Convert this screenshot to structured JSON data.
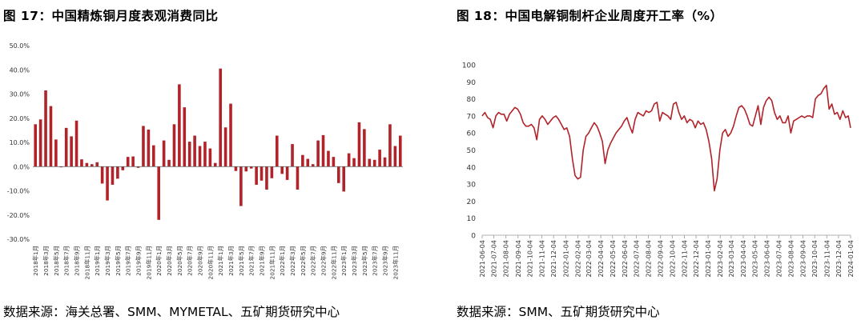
{
  "charts": [
    {
      "title": "图 17：中国精炼铜月度表观消费同比",
      "source": "数据来源：海关总署、SMM、MYMETAL、五矿期货研究中心"
    },
    {
      "title": "图 18：中国电解铜制杆企业周度开工率（%）",
      "source": "数据来源：SMM、五矿期货研究中心"
    }
  ],
  "chart_data": [
    {
      "type": "bar",
      "title": "中国精炼铜月度表观消费同比",
      "series_color": "#b22229",
      "ylim": [
        -30,
        50
      ],
      "yticks": [
        "-30.0%",
        "-20.0%",
        "-10.0%",
        "0.0%",
        "10.0%",
        "20.0%",
        "30.0%",
        "40.0%",
        "50.0%"
      ],
      "tick_labels": [
        "2018年1月",
        "2018年3月",
        "2018年5月",
        "2018年7月",
        "2018年9月",
        "2018年11月",
        "2019年1月",
        "2019年3月",
        "2019年5月",
        "2019年7月",
        "2019年9月",
        "2019年11月",
        "2020年1月",
        "2020年3月",
        "2020年5月",
        "2020年7月",
        "2020年9月",
        "2020年11月",
        "2021年1月",
        "2021年3月",
        "2021年5月",
        "2021年7月",
        "2021年9月",
        "2021年11月",
        "2022年1月",
        "2022年3月",
        "2022年5月",
        "2022年7月",
        "2022年9月",
        "2022年11月",
        "2023年1月",
        "2023年3月",
        "2023年5月",
        "2023年7月",
        "2023年9月",
        "2023年11月"
      ],
      "values": [
        17.5,
        19.5,
        31.5,
        25,
        11.2,
        -0.3,
        16,
        12.5,
        19,
        3,
        1.5,
        1,
        1.8,
        -7,
        -14,
        -7.5,
        -5,
        -1.5,
        4,
        4.2,
        -0.5,
        16.8,
        15.3,
        8.8,
        -22,
        10.8,
        2.8,
        17.5,
        34,
        24.5,
        10.3,
        12.8,
        8.5,
        10.3,
        7.5,
        1.5,
        40.5,
        16.2,
        26,
        -1.8,
        -16.3,
        -2,
        -0.8,
        -7.5,
        -5.8,
        -9.5,
        -4.8,
        12.8,
        -3,
        -5.5,
        9.3,
        -9.5,
        4.8,
        3.2,
        1,
        10.8,
        13,
        6.5,
        4,
        -6.8,
        -10.3,
        5.5,
        3.5,
        18.3,
        15.5,
        3.2,
        2.8,
        7,
        3.8,
        17.5,
        8.5,
        12.8
      ]
    },
    {
      "type": "line",
      "title": "中国电解铜制杆企业周度开工率（%）",
      "series_color": "#b22229",
      "ylim": [
        0,
        100
      ],
      "yticks": [
        "0",
        "10",
        "20",
        "30",
        "40",
        "50",
        "60",
        "70",
        "80",
        "90",
        "100"
      ],
      "x_range": [
        "2021-06-04",
        "2024-01-04"
      ],
      "x_ticks": [
        "2021-06-04",
        "2021-07-04",
        "2021-08-04",
        "2021-09-04",
        "2021-10-04",
        "2021-11-04",
        "2021-12-04",
        "2022-01-04",
        "2022-02-04",
        "2022-03-04",
        "2022-04-04",
        "2022-05-04",
        "2022-06-04",
        "2022-07-04",
        "2022-08-04",
        "2022-09-04",
        "2022-10-04",
        "2022-11-04",
        "2022-12-04",
        "2023-01-04",
        "2023-02-04",
        "2023-03-04",
        "2023-04-04",
        "2023-05-04",
        "2023-06-04",
        "2023-07-04",
        "2023-08-04",
        "2023-09-04",
        "2023-10-04",
        "2023-11-04",
        "2023-12-04",
        "2024-01-04"
      ],
      "points": [
        [
          "2021-06-04",
          70
        ],
        [
          "2021-06-11",
          72
        ],
        [
          "2021-06-18",
          69
        ],
        [
          "2021-06-25",
          68
        ],
        [
          "2021-07-02",
          63
        ],
        [
          "2021-07-09",
          70
        ],
        [
          "2021-07-16",
          72
        ],
        [
          "2021-07-23",
          71
        ],
        [
          "2021-07-30",
          71
        ],
        [
          "2021-08-06",
          67
        ],
        [
          "2021-08-13",
          71
        ],
        [
          "2021-08-20",
          73
        ],
        [
          "2021-08-27",
          75
        ],
        [
          "2021-09-03",
          74
        ],
        [
          "2021-09-10",
          71
        ],
        [
          "2021-09-17",
          66
        ],
        [
          "2021-09-24",
          64
        ],
        [
          "2021-10-01",
          64
        ],
        [
          "2021-10-08",
          65
        ],
        [
          "2021-10-15",
          63
        ],
        [
          "2021-10-22",
          56
        ],
        [
          "2021-10-29",
          68
        ],
        [
          "2021-11-05",
          70
        ],
        [
          "2021-11-12",
          68
        ],
        [
          "2021-11-19",
          65
        ],
        [
          "2021-11-26",
          67
        ],
        [
          "2021-12-03",
          69
        ],
        [
          "2021-12-10",
          70
        ],
        [
          "2021-12-17",
          68
        ],
        [
          "2021-12-24",
          65
        ],
        [
          "2021-12-31",
          62
        ],
        [
          "2022-01-07",
          63
        ],
        [
          "2022-01-14",
          58
        ],
        [
          "2022-01-21",
          45
        ],
        [
          "2022-01-28",
          35
        ],
        [
          "2022-02-04",
          33
        ],
        [
          "2022-02-11",
          34
        ],
        [
          "2022-02-18",
          50
        ],
        [
          "2022-02-25",
          58
        ],
        [
          "2022-03-04",
          60
        ],
        [
          "2022-03-11",
          63
        ],
        [
          "2022-03-18",
          66
        ],
        [
          "2022-03-25",
          64
        ],
        [
          "2022-04-01",
          60
        ],
        [
          "2022-04-08",
          55
        ],
        [
          "2022-04-15",
          42
        ],
        [
          "2022-04-22",
          50
        ],
        [
          "2022-04-29",
          54
        ],
        [
          "2022-05-06",
          57
        ],
        [
          "2022-05-13",
          60
        ],
        [
          "2022-05-20",
          62
        ],
        [
          "2022-05-27",
          64
        ],
        [
          "2022-06-03",
          67
        ],
        [
          "2022-06-10",
          69
        ],
        [
          "2022-06-17",
          64
        ],
        [
          "2022-06-24",
          60
        ],
        [
          "2022-07-01",
          68
        ],
        [
          "2022-07-08",
          72
        ],
        [
          "2022-07-15",
          71
        ],
        [
          "2022-07-22",
          70
        ],
        [
          "2022-07-29",
          73
        ],
        [
          "2022-08-05",
          72
        ],
        [
          "2022-08-12",
          73
        ],
        [
          "2022-08-19",
          77
        ],
        [
          "2022-08-26",
          78
        ],
        [
          "2022-09-02",
          67
        ],
        [
          "2022-09-09",
          72
        ],
        [
          "2022-09-16",
          71
        ],
        [
          "2022-09-23",
          70
        ],
        [
          "2022-09-30",
          68
        ],
        [
          "2022-10-07",
          77
        ],
        [
          "2022-10-14",
          78
        ],
        [
          "2022-10-21",
          72
        ],
        [
          "2022-10-28",
          68
        ],
        [
          "2022-11-04",
          70
        ],
        [
          "2022-11-11",
          66
        ],
        [
          "2022-11-18",
          68
        ],
        [
          "2022-11-25",
          67
        ],
        [
          "2022-12-02",
          63
        ],
        [
          "2022-12-09",
          67
        ],
        [
          "2022-12-16",
          65
        ],
        [
          "2022-12-23",
          66
        ],
        [
          "2022-12-30",
          62
        ],
        [
          "2023-01-06",
          55
        ],
        [
          "2023-01-13",
          45
        ],
        [
          "2023-01-20",
          26
        ],
        [
          "2023-01-27",
          33
        ],
        [
          "2023-02-03",
          50
        ],
        [
          "2023-02-10",
          60
        ],
        [
          "2023-02-17",
          62
        ],
        [
          "2023-02-24",
          58
        ],
        [
          "2023-03-03",
          60
        ],
        [
          "2023-03-10",
          64
        ],
        [
          "2023-03-17",
          70
        ],
        [
          "2023-03-24",
          75
        ],
        [
          "2023-03-31",
          76
        ],
        [
          "2023-04-07",
          74
        ],
        [
          "2023-04-14",
          70
        ],
        [
          "2023-04-21",
          65
        ],
        [
          "2023-04-28",
          64
        ],
        [
          "2023-05-05",
          70
        ],
        [
          "2023-05-12",
          76
        ],
        [
          "2023-05-19",
          65
        ],
        [
          "2023-05-26",
          75
        ],
        [
          "2023-06-02",
          79
        ],
        [
          "2023-06-09",
          81
        ],
        [
          "2023-06-16",
          79
        ],
        [
          "2023-06-23",
          72
        ],
        [
          "2023-06-30",
          68
        ],
        [
          "2023-07-07",
          70
        ],
        [
          "2023-07-14",
          66
        ],
        [
          "2023-07-21",
          66
        ],
        [
          "2023-07-28",
          70
        ],
        [
          "2023-08-04",
          60
        ],
        [
          "2023-08-11",
          67
        ],
        [
          "2023-08-18",
          68
        ],
        [
          "2023-08-25",
          69
        ],
        [
          "2023-09-01",
          70
        ],
        [
          "2023-09-08",
          69
        ],
        [
          "2023-09-15",
          70
        ],
        [
          "2023-09-22",
          70
        ],
        [
          "2023-09-29",
          69
        ],
        [
          "2023-10-06",
          80
        ],
        [
          "2023-10-13",
          82
        ],
        [
          "2023-10-20",
          83
        ],
        [
          "2023-10-27",
          86
        ],
        [
          "2023-11-03",
          88
        ],
        [
          "2023-11-10",
          74
        ],
        [
          "2023-11-17",
          77
        ],
        [
          "2023-11-24",
          71
        ],
        [
          "2023-12-01",
          72
        ],
        [
          "2023-12-08",
          68
        ],
        [
          "2023-12-15",
          73
        ],
        [
          "2023-12-22",
          69
        ],
        [
          "2023-12-29",
          70
        ],
        [
          "2024-01-04",
          63
        ]
      ]
    }
  ]
}
